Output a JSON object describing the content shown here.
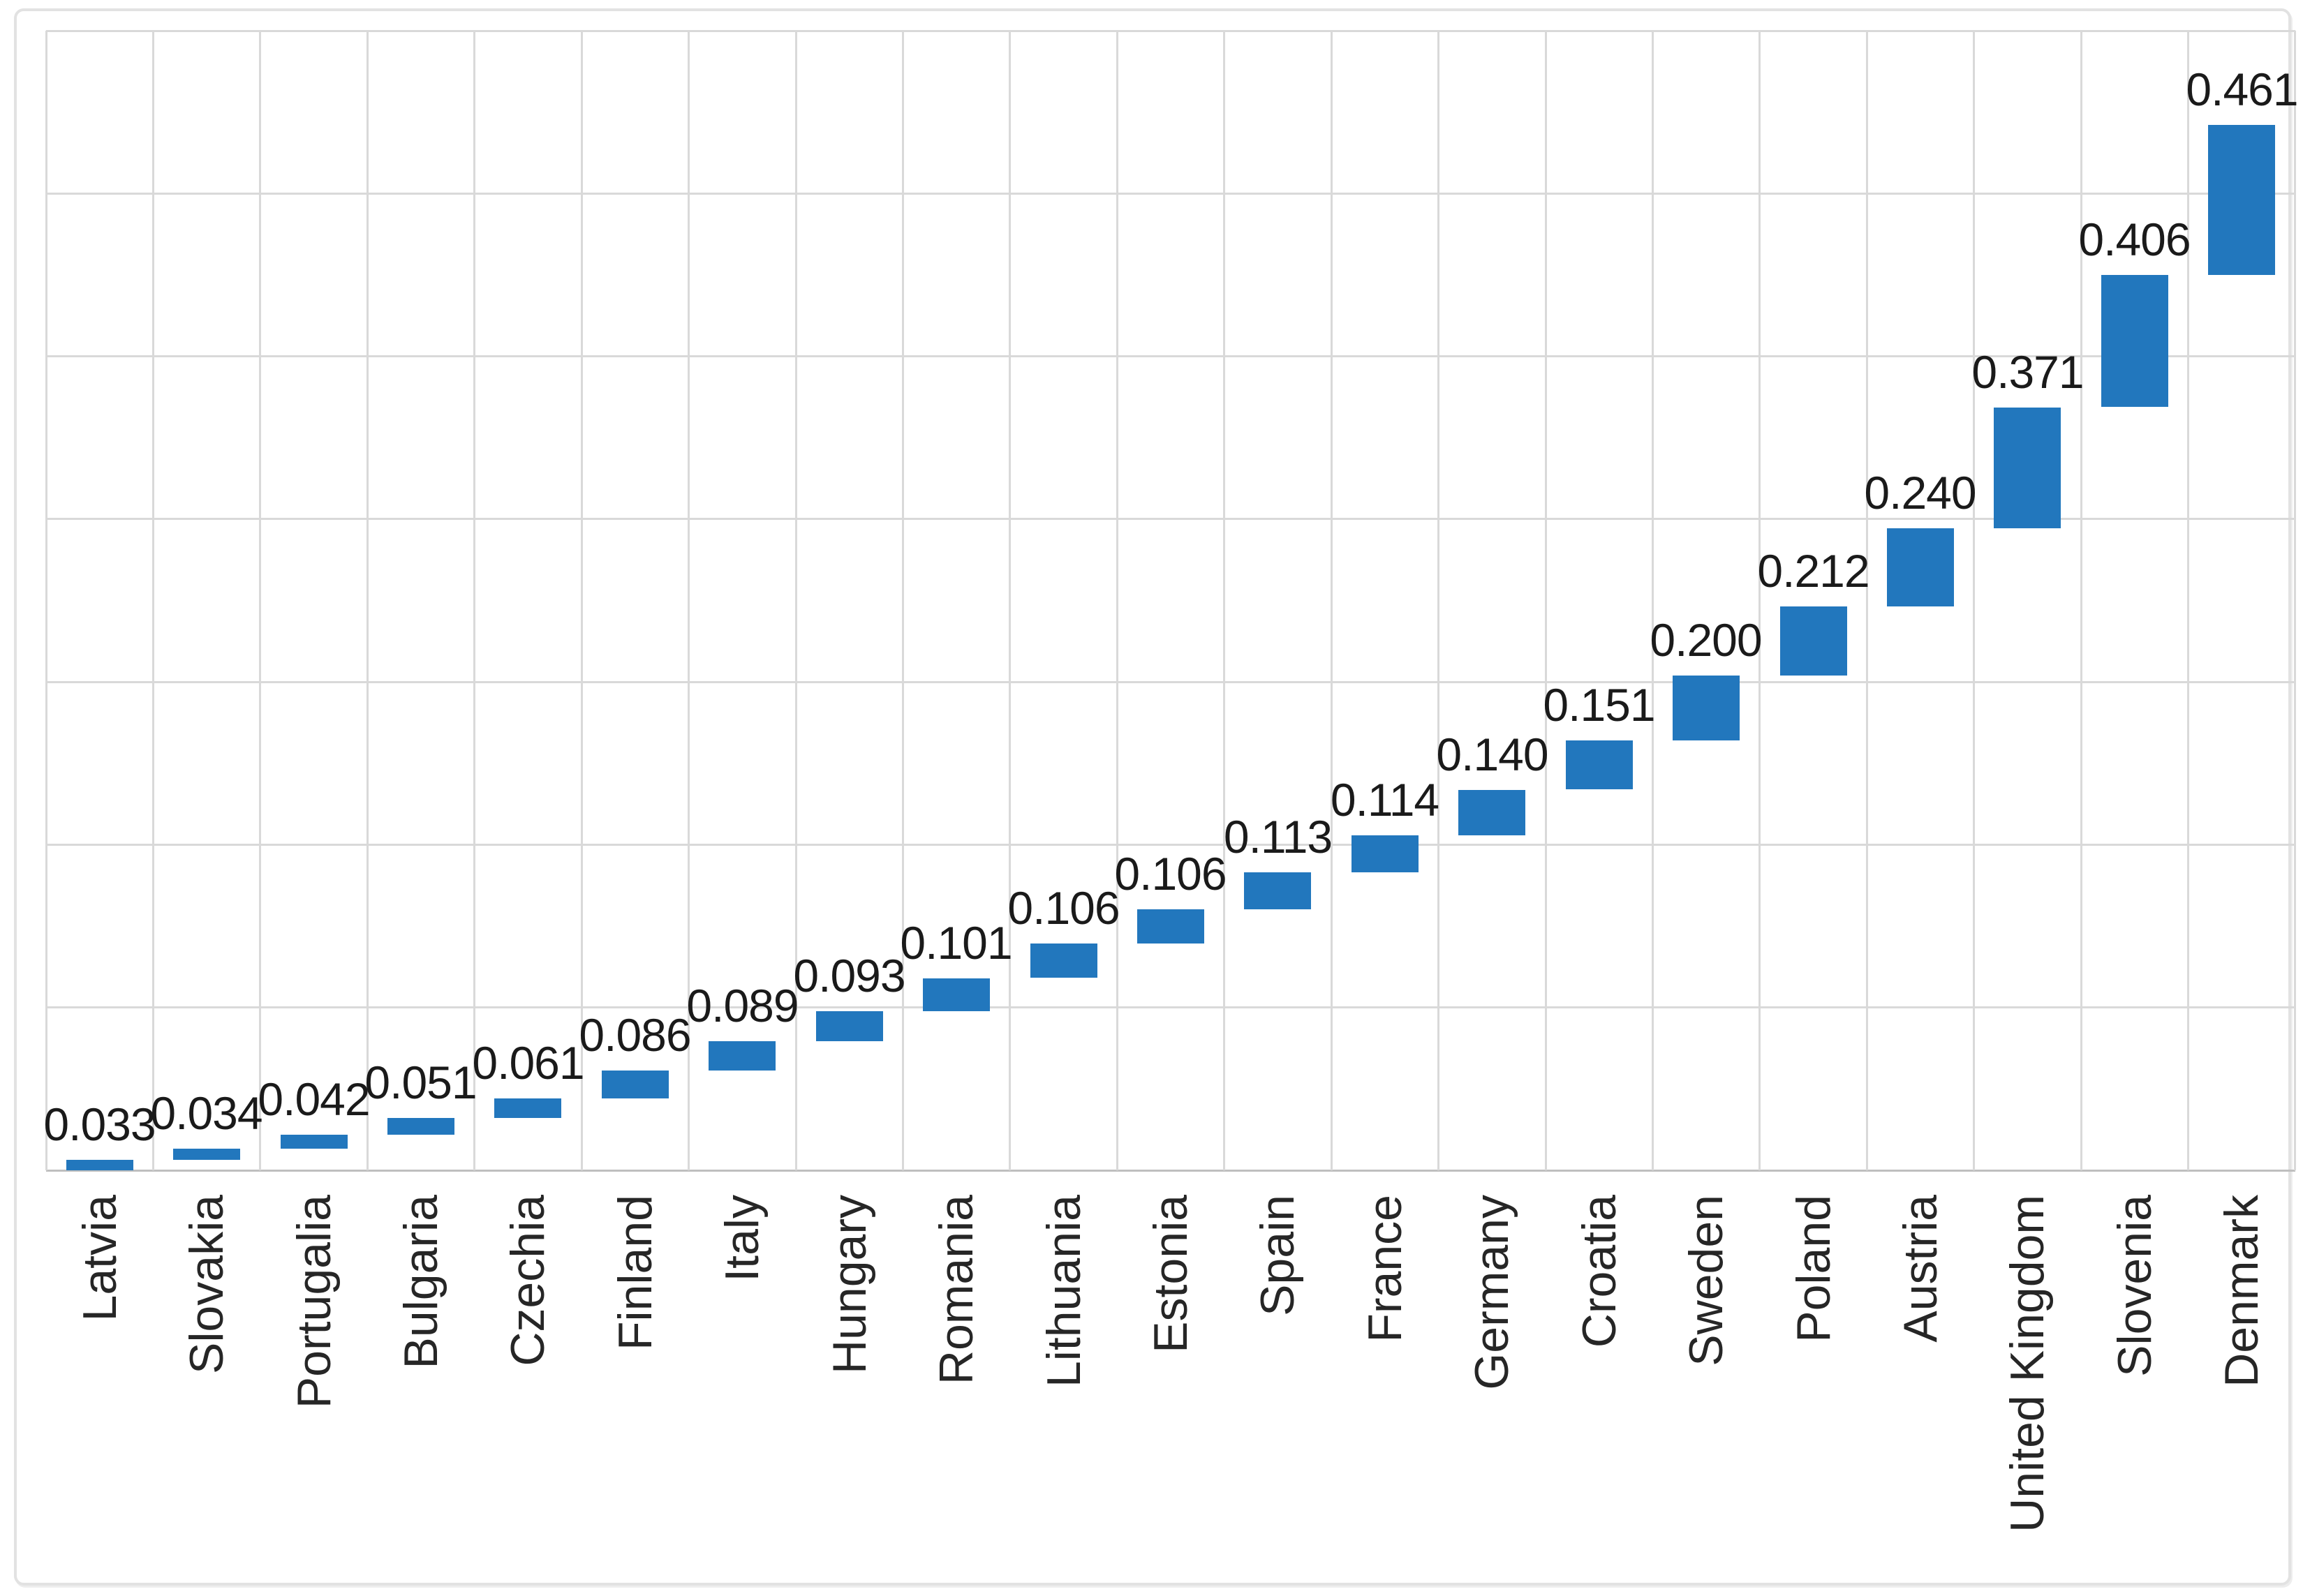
{
  "chart_data": {
    "type": "bar",
    "subtype": "waterfall-cumulative-floating",
    "title": "",
    "xlabel": "",
    "ylabel": "",
    "legend": "none",
    "y_axis_tick_labels_visible": false,
    "ylim": [
      0,
      3.5
    ],
    "y_gridline_step": 0.5,
    "grid": "both",
    "categories": [
      "Latvia",
      "Slovakia",
      "Portugalia",
      "Bulgaria",
      "Czechia",
      "Finland",
      "Italy",
      "Hungary",
      "Romania",
      "Lithuania",
      "Estonia",
      "Spain",
      "France",
      "Germany",
      "Croatia",
      "Sweden",
      "Poland",
      "Austria",
      "United Kingdom",
      "Slovenia",
      "Denmark"
    ],
    "values": [
      0.033,
      0.034,
      0.042,
      0.051,
      0.061,
      0.086,
      0.089,
      0.093,
      0.101,
      0.106,
      0.106,
      0.113,
      0.114,
      0.14,
      0.151,
      0.2,
      0.212,
      0.24,
      0.371,
      0.406,
      0.461
    ],
    "value_labels": [
      "0.033",
      "0.034",
      "0.042",
      "0.051",
      "0.061",
      "0.086",
      "0.089",
      "0.093",
      "0.101",
      "0.106",
      "0.106",
      "0.113",
      "0.114",
      "0.140",
      "0.151",
      "0.200",
      "0.212",
      "0.240",
      "0.371",
      "0.406",
      "0.461"
    ],
    "colors": {
      "bar_fill": "#2277BD",
      "gridline": "#d9d9d9",
      "axis_line": "#bfbfbf",
      "value_label_text": "#1a1a1a",
      "category_label_text": "#262626",
      "frame_border": "#e2e2e2",
      "background": "#ffffff"
    }
  }
}
